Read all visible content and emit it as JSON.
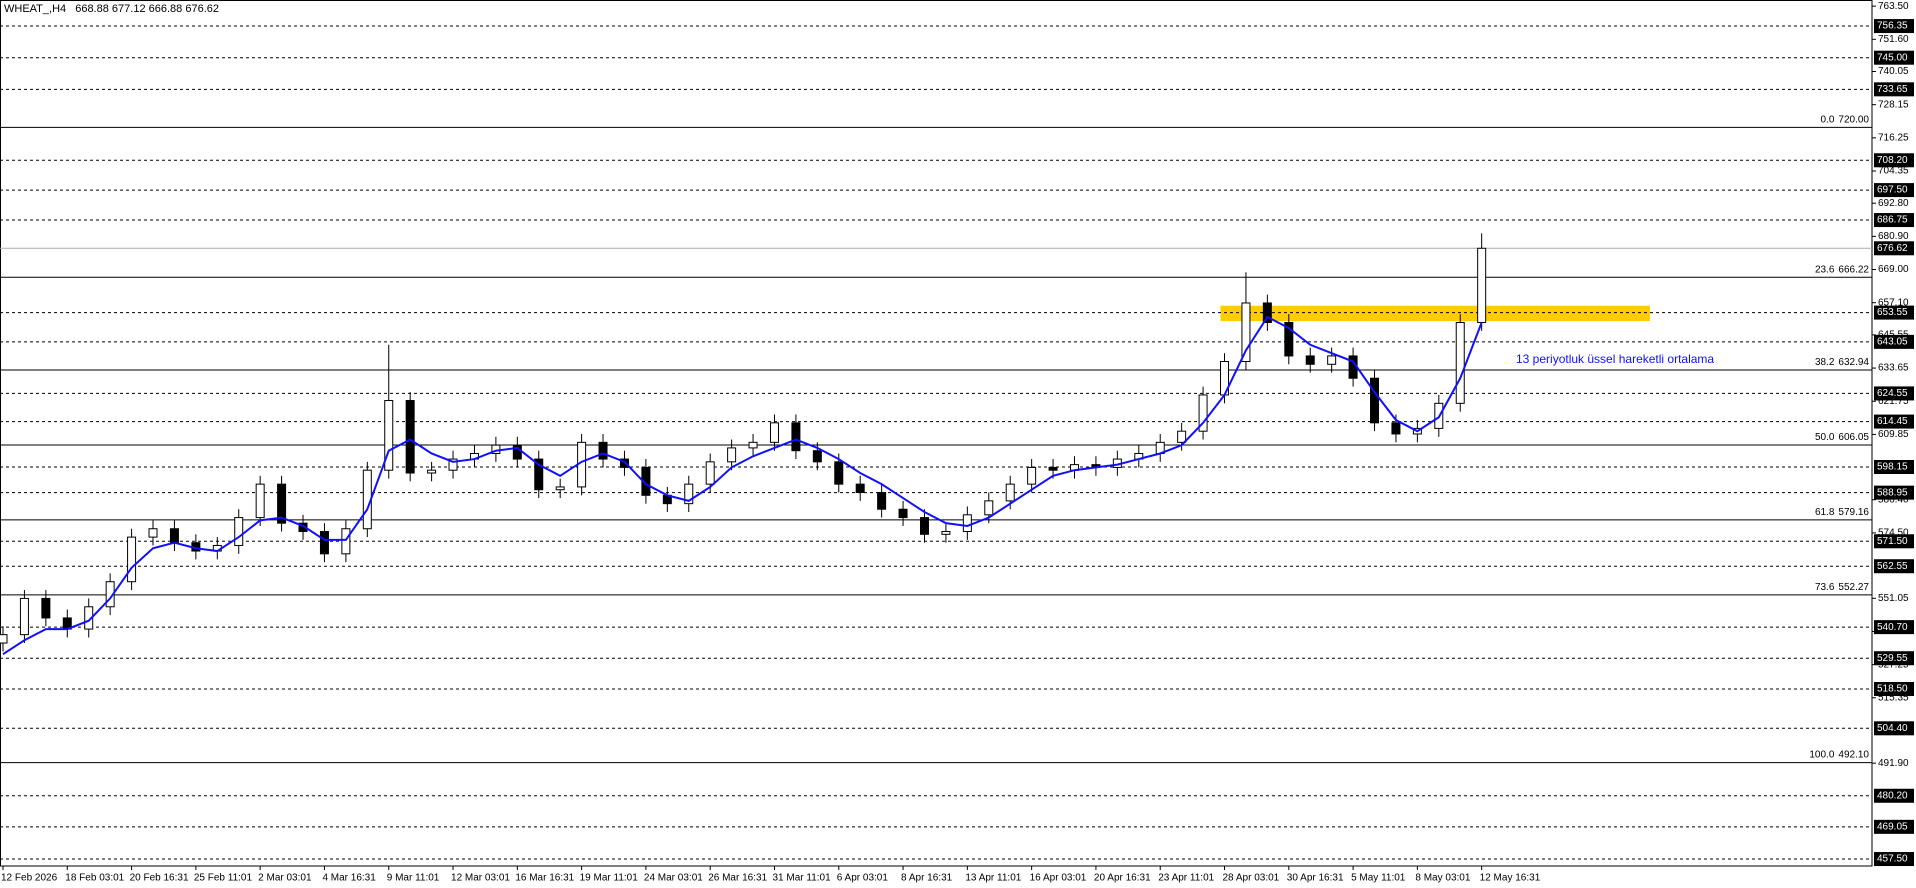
{
  "chart_data": {
    "type": "candlestick",
    "header": {
      "symbol": "WHEAT_,H4",
      "ohlc": [
        668.88,
        677.12,
        666.88,
        676.62
      ]
    },
    "categories": [
      "12 Feb 2026",
      null,
      null,
      "18 Feb 03:01",
      null,
      null,
      "20 Feb 16:31",
      null,
      null,
      "25 Feb 11:01",
      null,
      null,
      "2 Mar 03:01",
      null,
      null,
      "4 Mar 16:31",
      null,
      null,
      "9 Mar 11:01",
      null,
      null,
      "12 Mar 03:01",
      null,
      null,
      "16 Mar 16:31",
      null,
      null,
      "19 Mar 11:01",
      null,
      null,
      "24 Mar 03:01",
      null,
      null,
      "26 Mar 16:31",
      null,
      null,
      "31 Mar 11:01",
      null,
      null,
      "6 Apr 03:01",
      null,
      null,
      "8 Apr 16:31",
      null,
      null,
      "13 Apr 11:01",
      null,
      null,
      "16 Apr 03:01",
      null,
      null,
      "20 Apr 16:31",
      null,
      null,
      "23 Apr 11:01",
      null,
      null,
      "28 Apr 03:01",
      null,
      null,
      "30 Apr 16:31",
      null,
      null,
      "5 May 11:01",
      null,
      null,
      "8 May 03:01",
      null,
      null,
      "12 May 16:31"
    ],
    "open": [
      535,
      538,
      551,
      544,
      540,
      548,
      557,
      573,
      576,
      571,
      568,
      570,
      580,
      592,
      578,
      575,
      567,
      576,
      597,
      622,
      596,
      597,
      601,
      603,
      606,
      601,
      590,
      591,
      607,
      601,
      598,
      588,
      585,
      592,
      600,
      605,
      607,
      614,
      604,
      600,
      592,
      589,
      583,
      580,
      574,
      575,
      581,
      586,
      592,
      598,
      597,
      599,
      598,
      601,
      603,
      607,
      611,
      624,
      636,
      657,
      650,
      638,
      635,
      638,
      630,
      614,
      610,
      612,
      621,
      650
    ],
    "high": [
      541,
      554,
      554,
      547,
      551,
      560,
      576,
      579,
      579,
      574,
      573,
      583,
      595,
      595,
      581,
      578,
      579,
      600,
      642,
      625,
      600,
      604,
      606,
      609,
      609,
      604,
      594,
      610,
      610,
      604,
      601,
      591,
      595,
      603,
      608,
      610,
      617,
      617,
      607,
      603,
      595,
      592,
      586,
      583,
      578,
      584,
      589,
      595,
      601,
      601,
      602,
      602,
      604,
      606,
      610,
      614,
      627,
      639,
      668,
      660,
      653,
      641,
      641,
      641,
      633,
      617,
      615,
      624,
      653,
      682
    ],
    "low": [
      532,
      535,
      541,
      537,
      537,
      545,
      554,
      570,
      568,
      565,
      565,
      567,
      577,
      575,
      572,
      564,
      564,
      573,
      594,
      593,
      593,
      594,
      598,
      600,
      598,
      587,
      587,
      588,
      598,
      595,
      585,
      582,
      582,
      589,
      597,
      602,
      604,
      601,
      597,
      589,
      586,
      580,
      577,
      571,
      571,
      572,
      578,
      583,
      589,
      594,
      594,
      595,
      595,
      598,
      600,
      604,
      608,
      621,
      633,
      647,
      635,
      632,
      632,
      627,
      611,
      607,
      607,
      609,
      618,
      647
    ],
    "close": [
      538,
      551,
      544,
      540,
      548,
      557,
      573,
      576,
      571,
      568,
      570,
      580,
      592,
      578,
      575,
      567,
      576,
      597,
      622,
      596,
      597,
      601,
      603,
      606,
      601,
      590,
      591,
      607,
      601,
      598,
      588,
      585,
      592,
      600,
      605,
      607,
      614,
      604,
      600,
      592,
      589,
      583,
      580,
      574,
      575,
      581,
      586,
      592,
      598,
      597,
      599,
      598,
      601,
      603,
      607,
      611,
      624,
      636,
      657,
      650,
      638,
      635,
      638,
      630,
      614,
      610,
      612,
      621,
      650,
      676.62
    ],
    "ema": {
      "color": "#1010ff",
      "values": [
        531,
        536,
        540,
        540,
        543,
        551,
        562,
        569,
        571,
        569,
        568,
        573,
        579,
        580,
        577,
        572,
        572,
        583,
        604,
        608,
        603,
        600,
        601,
        604,
        605,
        599,
        595,
        600,
        603,
        600,
        592,
        588,
        586,
        591,
        598,
        602,
        605,
        608,
        605,
        601,
        596,
        592,
        587,
        582,
        578,
        577,
        580,
        585,
        590,
        595,
        597,
        598,
        599,
        601,
        603,
        606,
        614,
        624,
        640,
        652,
        648,
        642,
        639,
        636,
        625,
        615,
        611,
        616,
        630,
        650
      ]
    },
    "annotation": "13 periyotluk üssel hareketli ortalama",
    "ylim": [
      455,
      765.7
    ],
    "yticks": [
      {
        "value": 763.5,
        "label": "763.50"
      },
      {
        "value": 751.6,
        "label": "751.60"
      },
      740.05,
      728.15,
      716.25,
      704.35,
      {
        "value": 692.8,
        "label": "692.80"
      },
      {
        "value": 680.9,
        "label": "680.90"
      },
      {
        "value": 669,
        "label": "669.00"
      },
      {
        "value": 657.1,
        "label": "657.10"
      },
      645.55,
      633.65,
      621.75,
      609.85,
      {
        "value": 586.4,
        "label": "586.40"
      },
      {
        "value": 574.5,
        "label": "574.50"
      },
      551.05,
      539.15,
      527.25,
      515.35,
      {
        "value": 491.9,
        "label": "491.90"
      }
    ],
    "levels": {
      "values": [
        756.35,
        745,
        733.65,
        708.2,
        697.5,
        686.75,
        653.55,
        643.05,
        624.55,
        614.45,
        598.15,
        588.95,
        571.5,
        562.55,
        540.7,
        529.55,
        518.5,
        504.4,
        480.2,
        469.05,
        457.5
      ],
      "value_labels": [
        "756.35",
        "745.00",
        "733.65",
        "708.20",
        "697.50",
        "686.75",
        "653.55",
        "643.05",
        "624.55",
        "614.45",
        "598.15",
        "588.95",
        "571.50",
        "562.55",
        "540.70",
        "529.55",
        "518.50",
        "504.40",
        "480.20",
        "469.05",
        "457.50"
      ]
    },
    "fibonacci": {
      "levels": [
        "0.0",
        "23.6",
        "38.2",
        "50.0",
        "61.8",
        "73.6",
        "100.0"
      ],
      "values": [
        720,
        666.22,
        632.94,
        606.05,
        579.16,
        552.27,
        492.1
      ],
      "value_labels": [
        "720.00",
        "666.22",
        "632.94",
        "606.05",
        "579.16",
        "552.27",
        "492.10"
      ]
    },
    "current_price": 676.62,
    "zone": {
      "low": 650.5,
      "high": 656,
      "color": "#ffcc00"
    }
  }
}
